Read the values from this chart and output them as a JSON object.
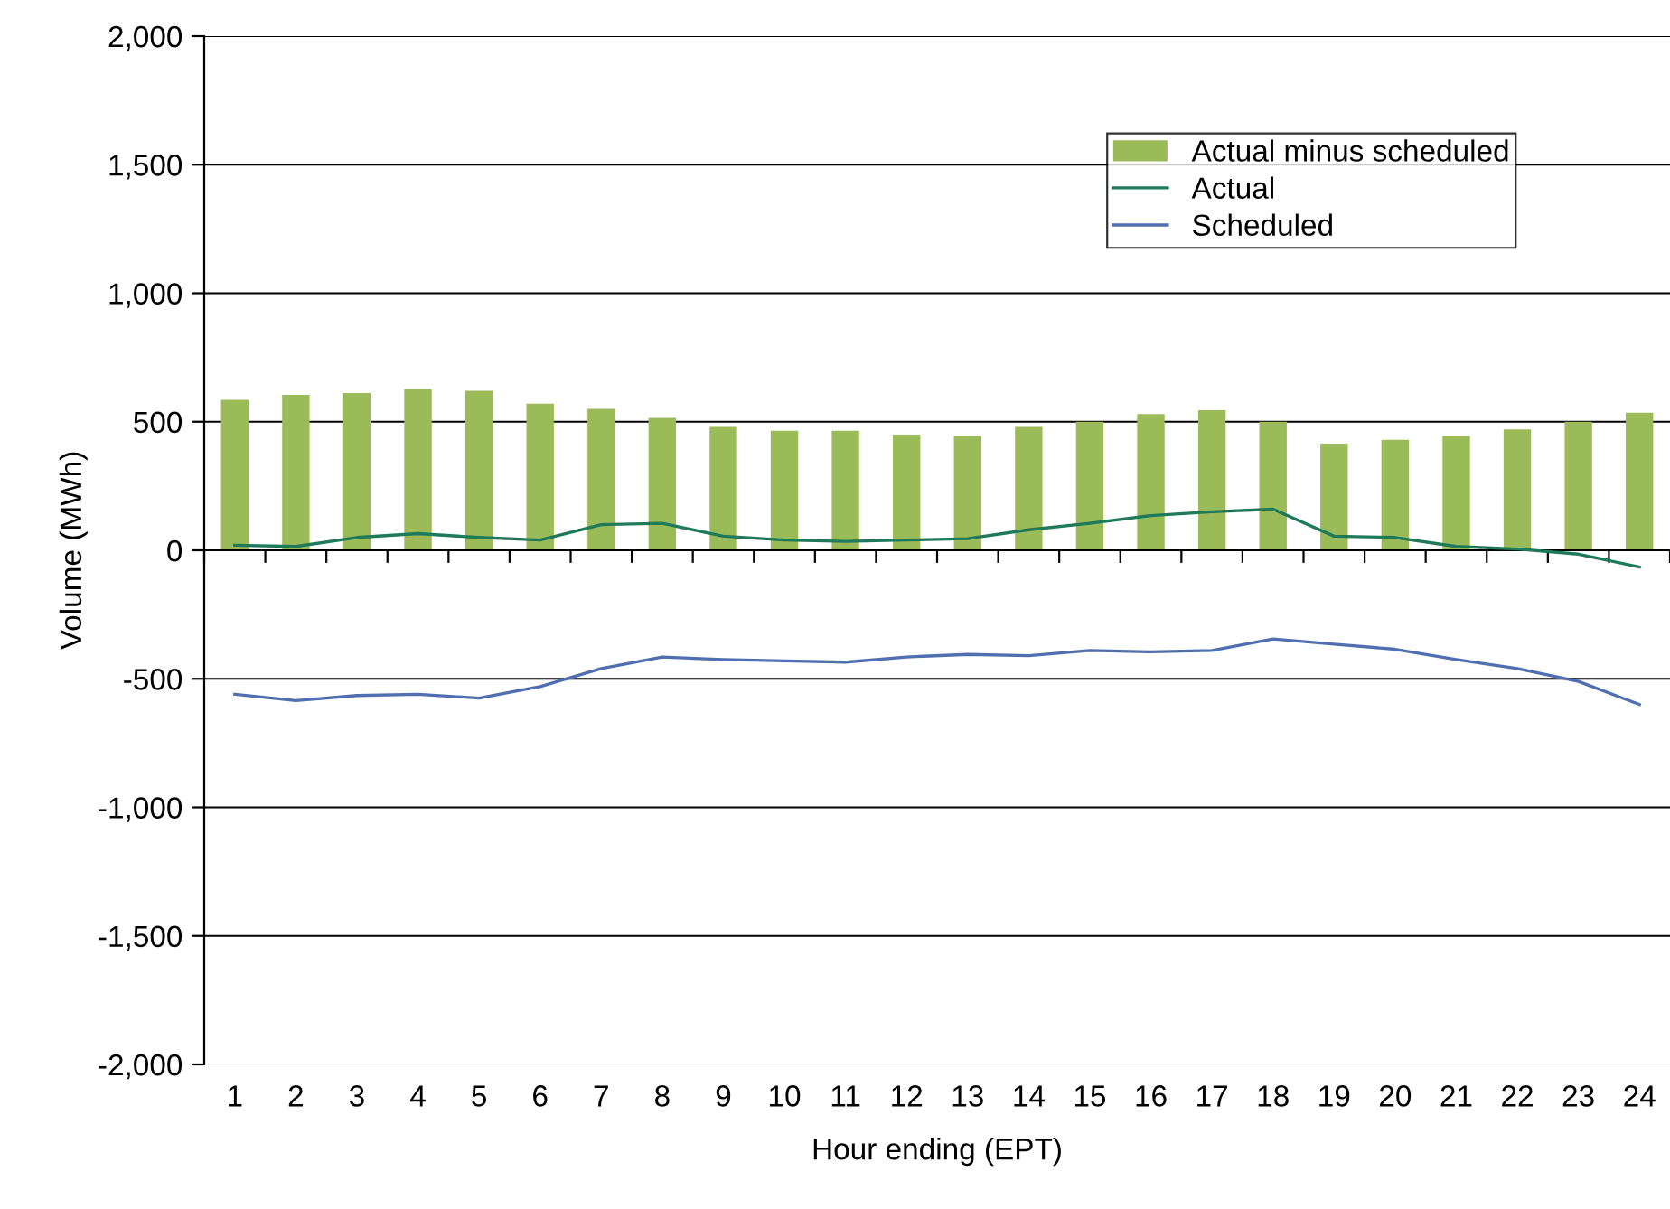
{
  "chart_data": {
    "type": "bar",
    "xlabel": "Hour ending (EPT)",
    "ylabel": "Volume (MWh)",
    "categories": [
      "1",
      "2",
      "3",
      "4",
      "5",
      "6",
      "7",
      "8",
      "9",
      "10",
      "11",
      "12",
      "13",
      "14",
      "15",
      "16",
      "17",
      "18",
      "19",
      "20",
      "21",
      "22",
      "23",
      "24"
    ],
    "series": [
      {
        "name": "Actual minus scheduled",
        "color": "#9bbb59",
        "values": [
          585,
          605,
          612,
          627,
          620,
          570,
          550,
          515,
          480,
          465,
          465,
          450,
          445,
          480,
          500,
          530,
          545,
          500,
          415,
          430,
          445,
          470,
          500,
          535
        ]
      },
      {
        "name": "Actual",
        "type": "line",
        "color": "#1f7a5a",
        "values": [
          20,
          15,
          50,
          65,
          50,
          40,
          100,
          105,
          55,
          40,
          35,
          40,
          45,
          80,
          105,
          135,
          150,
          160,
          55,
          50,
          15,
          5,
          -15,
          -65
        ]
      },
      {
        "name": "Scheduled",
        "type": "line",
        "color": "#4f6fb0",
        "values": [
          -560,
          -585,
          -565,
          -560,
          -575,
          -530,
          -460,
          -415,
          -425,
          -430,
          -435,
          -415,
          -405,
          -410,
          -390,
          -395,
          -390,
          -345,
          -365,
          -385,
          -425,
          -460,
          -510,
          -600
        ]
      }
    ],
    "ylim": [
      -2000,
      2000
    ],
    "yticks": [
      {
        "value": -2000,
        "label": "-2,000"
      },
      {
        "value": -1500,
        "label": "-1,500"
      },
      {
        "value": -1000,
        "label": "-1,000"
      },
      {
        "value": -500,
        "label": "-500"
      },
      0,
      {
        "value": 500,
        "label": "500"
      },
      {
        "value": 1000,
        "label": "1,000"
      },
      {
        "value": 1500,
        "label": "1,500"
      },
      {
        "value": 2000,
        "label": "2,000"
      }
    ],
    "grid": "y",
    "legend": "top right"
  }
}
